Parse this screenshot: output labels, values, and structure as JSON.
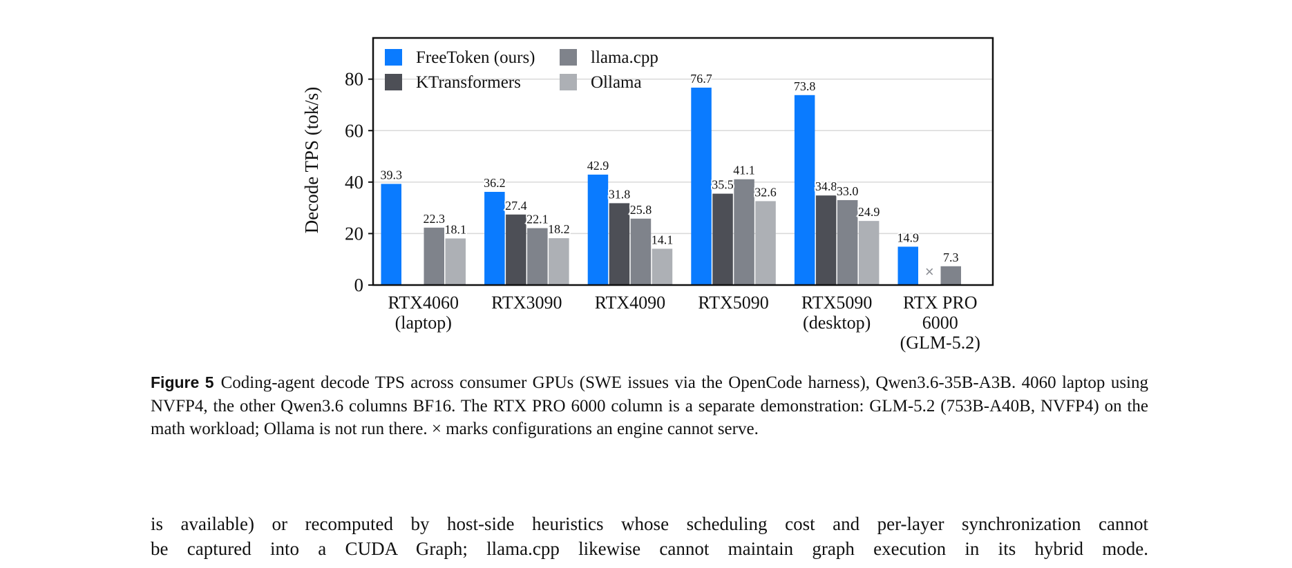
{
  "chart_data": {
    "type": "bar",
    "ylabel": "Decode TPS (tok/s)",
    "ylim": [
      0,
      96
    ],
    "yticks": [
      0,
      20,
      40,
      60,
      80
    ],
    "grid": true,
    "legend_placement": "top-left",
    "categories": [
      [
        "RTX4060",
        "(laptop)"
      ],
      [
        "RTX3090"
      ],
      [
        "RTX4090"
      ],
      [
        "RTX5090"
      ],
      [
        "RTX5090",
        "(desktop)"
      ],
      [
        "RTX PRO",
        "6000",
        "(GLM-5.2)"
      ]
    ],
    "unsupported_marker": "×",
    "series": [
      {
        "name": "FreeToken (ours)",
        "color": "#0a7bff",
        "values": [
          39.3,
          36.2,
          42.9,
          76.7,
          73.8,
          14.9
        ]
      },
      {
        "name": "KTransformers",
        "color": "#4d4f56",
        "values": [
          null,
          27.4,
          31.8,
          35.5,
          34.8,
          null
        ]
      },
      {
        "name": "llama.cpp",
        "color": "#7f838b",
        "values": [
          22.3,
          22.1,
          25.8,
          41.1,
          33.0,
          7.3
        ]
      },
      {
        "name": "Ollama",
        "color": "#adb0b5",
        "values": [
          18.1,
          18.2,
          14.1,
          32.6,
          24.9,
          null
        ]
      }
    ],
    "labels": [
      [
        "39.3",
        null,
        "22.3",
        "18.1"
      ],
      [
        "36.2",
        "27.4",
        "22.1",
        "18.2"
      ],
      [
        "42.9",
        "31.8",
        "25.8",
        "14.1"
      ],
      [
        "76.7",
        "35.5",
        "41.1",
        "32.6"
      ],
      [
        "73.8",
        "34.8",
        "33.0",
        "24.9"
      ],
      [
        "14.9",
        "×",
        "7.3",
        null
      ]
    ]
  },
  "caption": {
    "label": "Figure 5",
    "text": "Coding-agent decode TPS across consumer GPUs (SWE issues via the OpenCode harness), Qwen3.6-35B-A3B. 4060 laptop using NVFP4, the other Qwen3.6 columns BF16. The RTX PRO 6000 column is a separate demonstration: GLM-5.2 (753B-A40B, NVFP4) on the math workload; Ollama is not run there. × marks configurations an engine cannot serve."
  },
  "body": {
    "line1": "is available) or recomputed by host-side heuristics whose scheduling cost and per-layer synchronization cannot",
    "line2": "be captured into a CUDA Graph; llama.cpp likewise cannot maintain graph execution in its hybrid mode."
  }
}
